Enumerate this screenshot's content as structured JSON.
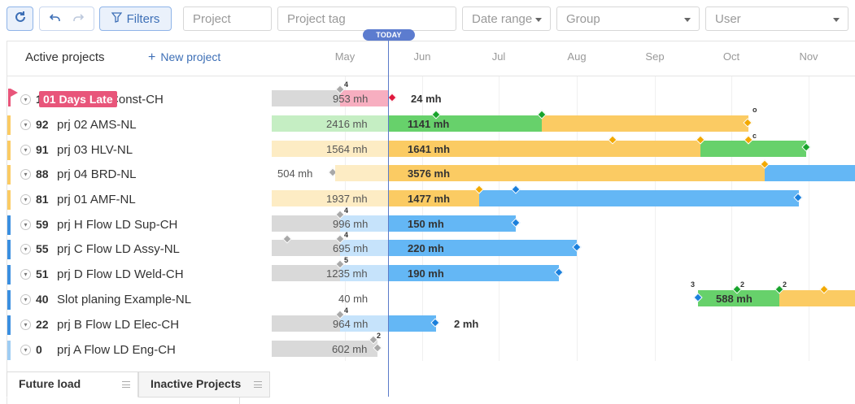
{
  "toolbar": {
    "refresh_icon": "refresh-icon",
    "undo_icon": "undo-icon",
    "redo_icon": "redo-icon",
    "filters_label": "Filters",
    "project_placeholder": "Project",
    "tag_placeholder": "Project tag",
    "date_placeholder": "Date range",
    "group_placeholder": "Group",
    "user_placeholder": "User"
  },
  "panel": {
    "title": "Active projects",
    "new_project": "New project"
  },
  "timeline": {
    "today_label": "TODAY",
    "months": [
      "May",
      "Jun",
      "Jul",
      "Aug",
      "Sep",
      "Oct",
      "Nov"
    ]
  },
  "colors": {
    "late": "#e8557a",
    "green": "#67d16b",
    "orange": "#fbcb63",
    "blue": "#64b7f5",
    "grey": "#d9d9d9"
  },
  "rows": [
    {
      "priority": "1",
      "name": "prj 01 LD Const-CH",
      "late_badge": "01 Days Late",
      "past_mh": "953 mh",
      "future_mh": "24 mh",
      "past_count": "4"
    },
    {
      "priority": "92",
      "name": "prj 02 AMS-NL",
      "past_mh": "2416 mh",
      "future_mh": "1141 mh",
      "marker": "o"
    },
    {
      "priority": "91",
      "name": "prj 03 HLV-NL",
      "past_mh": "1564 mh",
      "future_mh": "1641 mh",
      "marker": "c"
    },
    {
      "priority": "88",
      "name": "prj 04 BRD-NL",
      "past_mh": "504 mh",
      "future_mh": "3576 mh"
    },
    {
      "priority": "81",
      "name": "prj 01 AMF-NL",
      "past_mh": "1937 mh",
      "future_mh": "1477 mh"
    },
    {
      "priority": "59",
      "name": "prj H Flow LD Sup-CH",
      "past_mh": "996 mh",
      "future_mh": "150 mh",
      "past_count": "4"
    },
    {
      "priority": "55",
      "name": "prj C Flow LD Assy-NL",
      "past_mh": "695 mh",
      "future_mh": "220 mh",
      "past_count": "4"
    },
    {
      "priority": "51",
      "name": "prj D Flow LD Weld-CH",
      "past_mh": "1235 mh",
      "future_mh": "190 mh",
      "past_count": "5"
    },
    {
      "priority": "40",
      "name": "Slot planing Example-NL",
      "past_mh": "40 mh",
      "future_mh": "588 mh",
      "counts": [
        "3",
        "2",
        "2"
      ]
    },
    {
      "priority": "22",
      "name": "prj B Flow LD Elec-CH",
      "past_mh": "964 mh",
      "future_mh": "2 mh",
      "past_count": "4"
    },
    {
      "priority": "0",
      "name": "prj A Flow LD Eng-CH",
      "past_mh": "602 mh",
      "past_count": "2"
    }
  ],
  "tabs": {
    "future_load": "Future load",
    "inactive_projects": "Inactive Projects"
  }
}
